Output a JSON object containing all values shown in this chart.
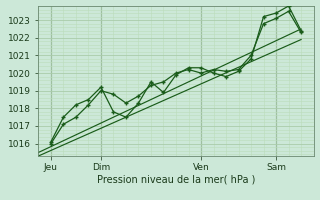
{
  "bg_color": "#cce8d8",
  "plot_bg_color": "#cce8d8",
  "grid_major_color": "#aaccaa",
  "grid_minor_color": "#bbddbb",
  "line_color": "#1a5c1a",
  "ylim": [
    1015.3,
    1023.8
  ],
  "yticks": [
    1016,
    1017,
    1018,
    1019,
    1020,
    1021,
    1022,
    1023
  ],
  "day_labels": [
    "Jeu",
    "Dim",
    "Ven",
    "Sam"
  ],
  "day_positions": [
    0,
    24,
    72,
    108
  ],
  "xmin": -6,
  "xmax": 126,
  "line1_x": [
    0,
    6,
    12,
    18,
    24,
    30,
    36,
    42,
    48,
    54,
    60,
    66,
    72,
    78,
    84,
    90,
    96,
    102,
    108,
    114,
    120
  ],
  "line1_y": [
    1016.0,
    1017.1,
    1017.5,
    1018.2,
    1019.0,
    1018.8,
    1018.3,
    1018.7,
    1019.3,
    1019.5,
    1020.0,
    1020.2,
    1020.0,
    1020.2,
    1020.1,
    1020.2,
    1021.0,
    1022.8,
    1023.1,
    1023.5,
    1022.3
  ],
  "line2_x": [
    0,
    6,
    12,
    18,
    24,
    30,
    36,
    42,
    48,
    54,
    60,
    66,
    72,
    78,
    84,
    90,
    96,
    102,
    108,
    114,
    120
  ],
  "line2_y": [
    1016.1,
    1017.5,
    1018.2,
    1018.5,
    1019.2,
    1017.8,
    1017.5,
    1018.3,
    1019.5,
    1018.9,
    1019.9,
    1020.3,
    1020.3,
    1020.0,
    1019.8,
    1020.1,
    1020.8,
    1023.2,
    1023.4,
    1023.8,
    1022.4
  ],
  "line3_x": [
    -6,
    120
  ],
  "line3_y": [
    1015.5,
    1022.5
  ],
  "line4_x": [
    -6,
    120
  ],
  "line4_y": [
    1015.3,
    1021.9
  ],
  "xlabel": "Pression niveau de la mer( hPa )"
}
